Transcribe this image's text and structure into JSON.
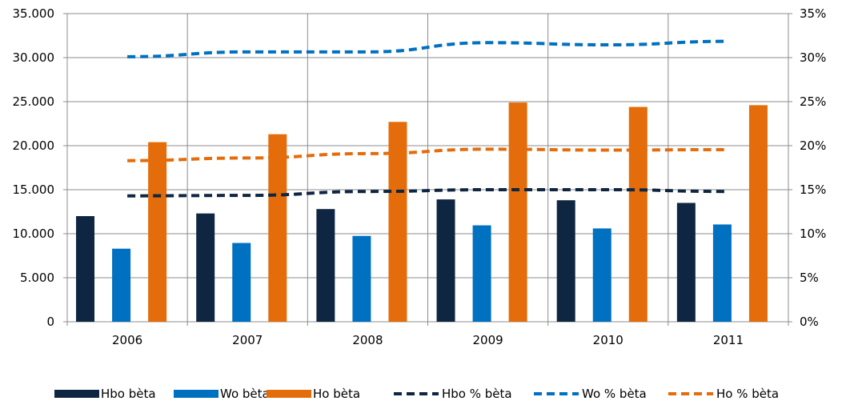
{
  "chart_data": {
    "type": "bar",
    "categories": [
      "2006",
      "2007",
      "2008",
      "2009",
      "2010",
      "2011"
    ],
    "series": [
      {
        "name": "Hbo bèta",
        "type": "bar",
        "axis": "left",
        "color": "#0f2642",
        "values": [
          12000,
          12300,
          12800,
          13900,
          13800,
          13500
        ]
      },
      {
        "name": "Wo bèta",
        "type": "bar",
        "axis": "left",
        "color": "#0070c0",
        "values": [
          8300,
          8950,
          9750,
          10950,
          10600,
          11050
        ]
      },
      {
        "name": "Ho bèta",
        "type": "bar",
        "axis": "left",
        "color": "#e46c0a",
        "values": [
          20400,
          21300,
          22700,
          24900,
          24400,
          24600
        ]
      },
      {
        "name": "Hbo % bèta",
        "type": "line",
        "axis": "right",
        "dashed": true,
        "color": "#0f2642",
        "values": [
          14.3,
          14.35,
          14.8,
          15.0,
          15.0,
          14.8
        ]
      },
      {
        "name": "Wo % bèta",
        "type": "line",
        "axis": "right",
        "dashed": true,
        "color": "#0070c0",
        "values": [
          30.1,
          30.65,
          30.65,
          31.7,
          31.45,
          31.85
        ]
      },
      {
        "name": "Ho % bèta",
        "type": "line",
        "axis": "right",
        "dashed": true,
        "color": "#e46c0a",
        "values": [
          18.3,
          18.6,
          19.1,
          19.6,
          19.5,
          19.55
        ]
      }
    ],
    "ylim": [
      0,
      35000
    ],
    "y_ticks": [
      "0",
      "5.000",
      "10.000",
      "15.000",
      "20.000",
      "25.000",
      "30.000",
      "35.000"
    ],
    "y2lim": [
      0,
      35
    ],
    "y2_ticks": [
      "0%",
      "5%",
      "10%",
      "15%",
      "20%",
      "25%",
      "30%",
      "35%"
    ],
    "grid": true,
    "legend_position": "bottom"
  }
}
